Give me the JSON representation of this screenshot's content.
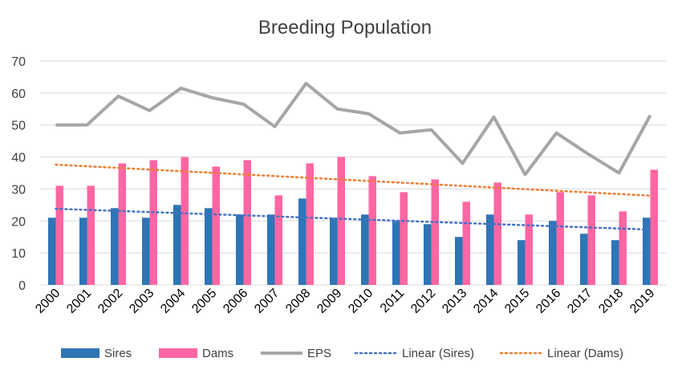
{
  "chart_data": {
    "type": "bar",
    "title": "Breeding Population",
    "xlabel": "",
    "ylabel": "",
    "ylim": [
      0,
      70
    ],
    "yticks": [
      0,
      10,
      20,
      30,
      40,
      50,
      60,
      70
    ],
    "grid": true,
    "legend_position": "bottom",
    "categories": [
      "2000",
      "2001",
      "2002",
      "2003",
      "2004",
      "2005",
      "2006",
      "2007",
      "2008",
      "2009",
      "2010",
      "2011",
      "2012",
      "2013",
      "2014",
      "2015",
      "2016",
      "2017",
      "2018",
      "2019"
    ],
    "series": [
      {
        "name": "Sires",
        "kind": "bar",
        "color": "#2e75b6",
        "values": [
          21,
          21,
          24,
          21,
          25,
          24,
          22,
          22,
          27,
          21,
          22,
          20,
          19,
          15,
          22,
          14,
          20,
          16,
          14,
          21
        ]
      },
      {
        "name": "Dams",
        "kind": "bar",
        "color": "#ff66a3",
        "values": [
          31,
          31,
          38,
          39,
          40,
          37,
          39,
          28,
          38,
          40,
          34,
          29,
          33,
          26,
          32,
          22,
          29,
          28,
          23,
          36
        ]
      },
      {
        "name": "EPS",
        "kind": "line",
        "color": "#a6a6a6",
        "values": [
          50,
          50,
          59,
          54.5,
          61.5,
          58.5,
          56.5,
          49.5,
          63,
          55,
          53.5,
          47.5,
          48.5,
          38,
          52.5,
          34.5,
          47.5,
          41,
          35,
          53
        ]
      },
      {
        "name": "Linear (Sires)",
        "kind": "trendline",
        "color": "#4472c4",
        "start": 23.8,
        "end": 17.3
      },
      {
        "name": "Linear (Dams)",
        "kind": "trendline",
        "color": "#ed7d31",
        "start": 37.6,
        "end": 27.9
      }
    ]
  }
}
